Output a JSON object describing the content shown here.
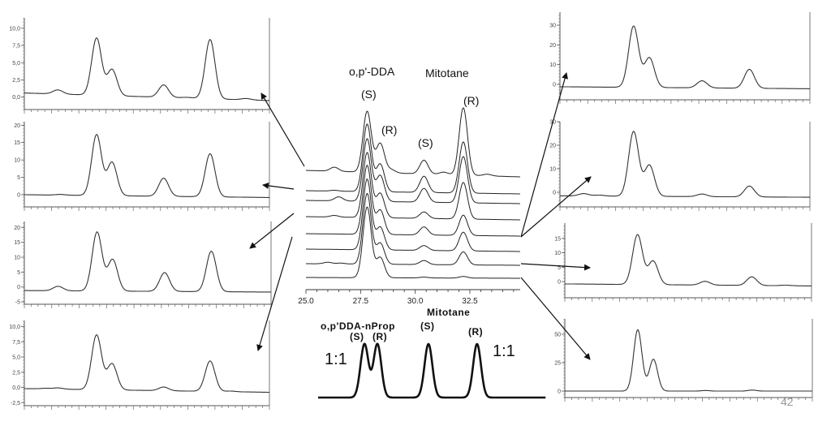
{
  "chart_data": [
    {
      "type": "line",
      "id": "L1",
      "title": "",
      "xlabel": "",
      "ylabel": "",
      "xlim": [
        25.0,
        34.5
      ],
      "ylim": [
        -1.8,
        10.8
      ],
      "yticks": [
        {
          "v": 10,
          "label": "10,0"
        },
        {
          "v": 7.5,
          "label": "7,5"
        },
        {
          "v": 5,
          "label": "5,0"
        },
        {
          "v": 2.5,
          "label": "2,5"
        },
        {
          "v": 0,
          "label": "0,0"
        }
      ],
      "baseline": [
        0.6,
        -0.5
      ],
      "peaks": [
        {
          "t": 26.3,
          "h": 0.6
        },
        {
          "t": 27.8,
          "h": 8.3
        },
        {
          "t": 28.4,
          "h": 3.8
        },
        {
          "t": 30.4,
          "h": 1.8
        },
        {
          "t": 31.3,
          "h": 0.1
        },
        {
          "t": 32.2,
          "h": 8.6
        },
        {
          "t": 33.6,
          "h": 0.2
        }
      ]
    },
    {
      "type": "line",
      "id": "L2",
      "xlim": [
        25.0,
        34.5
      ],
      "ylim": [
        -3.5,
        21
      ],
      "yticks": [
        {
          "v": 20,
          "label": "20"
        },
        {
          "v": 15,
          "label": "15"
        },
        {
          "v": 10,
          "label": "10"
        },
        {
          "v": 5,
          "label": "5"
        },
        {
          "v": 0,
          "label": "0"
        }
      ],
      "baseline": [
        0,
        -0.8
      ],
      "peaks": [
        {
          "t": 26.4,
          "h": 0.2
        },
        {
          "t": 27.8,
          "h": 17.5
        },
        {
          "t": 28.4,
          "h": 9.6
        },
        {
          "t": 30.4,
          "h": 5.2
        },
        {
          "t": 32.2,
          "h": 12.4
        }
      ]
    },
    {
      "type": "line",
      "id": "L3",
      "xlim": [
        25.0,
        34.5
      ],
      "ylim": [
        -5.8,
        22
      ],
      "yticks": [
        {
          "v": 20,
          "label": "20"
        },
        {
          "v": 15,
          "label": "15"
        },
        {
          "v": 10,
          "label": "10"
        },
        {
          "v": 5,
          "label": "5"
        },
        {
          "v": 0,
          "label": "0"
        },
        {
          "v": -5,
          "label": "-5"
        }
      ],
      "baseline": [
        -1.2,
        -1.7
      ],
      "peaks": [
        {
          "t": 26.3,
          "h": 1.5
        },
        {
          "t": 27.8,
          "h": 19.8
        },
        {
          "t": 28.4,
          "h": 10.6
        },
        {
          "t": 30.4,
          "h": 6.3
        },
        {
          "t": 32.2,
          "h": 13.6
        }
      ]
    },
    {
      "type": "line",
      "id": "L4",
      "xlim": [
        25.0,
        34.5
      ],
      "ylim": [
        -3.0,
        11
      ],
      "yticks": [
        {
          "v": 10,
          "label": "10,0"
        },
        {
          "v": 7.5,
          "label": "7,5"
        },
        {
          "v": 5,
          "label": "5,0"
        },
        {
          "v": 2.5,
          "label": "2,5"
        },
        {
          "v": 0,
          "label": "0,0"
        },
        {
          "v": -2.5,
          "label": "-2,5"
        }
      ],
      "baseline": [
        -0.2,
        -0.8
      ],
      "peaks": [
        {
          "t": 25.8,
          "h": 0.1
        },
        {
          "t": 26.3,
          "h": 0.2
        },
        {
          "t": 27.8,
          "h": 9.0
        },
        {
          "t": 28.4,
          "h": 4.3
        },
        {
          "t": 30.4,
          "h": 0.6
        },
        {
          "t": 32.2,
          "h": 5.0
        },
        {
          "t": 33.0,
          "h": 0.1
        }
      ]
    },
    {
      "type": "line",
      "id": "R1",
      "xlim": [
        25.0,
        34.5
      ],
      "ylim": [
        -7.8,
        36.6
      ],
      "yticks": [
        {
          "v": 30,
          "label": "30"
        },
        {
          "v": 20,
          "label": "20"
        },
        {
          "v": 10,
          "label": "10"
        },
        {
          "v": 0,
          "label": "0"
        }
      ],
      "baseline": [
        -1.2,
        -2.2
      ],
      "peaks": [
        {
          "t": 27.8,
          "h": 31
        },
        {
          "t": 28.4,
          "h": 15
        },
        {
          "t": 30.4,
          "h": 3.6
        },
        {
          "t": 32.2,
          "h": 9.6
        }
      ]
    },
    {
      "type": "line",
      "id": "R2",
      "xlim": [
        25.0,
        34.5
      ],
      "ylim": [
        -6.2,
        30
      ],
      "yticks": [
        {
          "v": 30,
          "label": "30"
        },
        {
          "v": 20,
          "label": "20"
        },
        {
          "v": 10,
          "label": "10"
        },
        {
          "v": 0,
          "label": "0"
        }
      ],
      "baseline": [
        -1.5,
        -2.1
      ],
      "peaks": [
        {
          "t": 25.9,
          "h": 1.0
        },
        {
          "t": 26.5,
          "h": 0.4
        },
        {
          "t": 27.8,
          "h": 27.5
        },
        {
          "t": 28.4,
          "h": 13.2
        },
        {
          "t": 30.4,
          "h": 1.1
        },
        {
          "t": 32.2,
          "h": 4.6
        }
      ]
    },
    {
      "type": "line",
      "id": "R3",
      "xlim": [
        25.0,
        34.5
      ],
      "ylim": [
        -5.6,
        20.3
      ],
      "yticks": [
        {
          "v": 15,
          "label": "15"
        },
        {
          "v": 10,
          "label": "10"
        },
        {
          "v": 5,
          "label": "5"
        },
        {
          "v": 0,
          "label": "0"
        }
      ],
      "baseline": [
        -0.8,
        -1.5
      ],
      "peaks": [
        {
          "t": 27.8,
          "h": 17.3
        },
        {
          "t": 28.4,
          "h": 8.2
        },
        {
          "t": 30.4,
          "h": 1.3
        },
        {
          "t": 32.2,
          "h": 3.0
        },
        {
          "t": 33.5,
          "h": 0.2
        }
      ]
    },
    {
      "type": "line",
      "id": "R4",
      "xlim": [
        25.0,
        34.5
      ],
      "ylim": [
        -5.7,
        63.6
      ],
      "yticks": [
        {
          "v": 50,
          "label": "50"
        },
        {
          "v": 25,
          "label": "25"
        },
        {
          "v": 0,
          "label": "0"
        }
      ],
      "baseline": [
        0,
        0
      ],
      "peaks": [
        {
          "t": 27.8,
          "h": 54
        },
        {
          "t": 28.4,
          "h": 28
        },
        {
          "t": 30.4,
          "h": 0.5
        },
        {
          "t": 32.2,
          "h": 0.9
        }
      ]
    },
    {
      "type": "line",
      "id": "stacked",
      "title": "",
      "xlabel": "",
      "ylabel": "",
      "xlim": [
        25.0,
        34.8
      ],
      "xticks": [
        {
          "v": 25.0,
          "label": "25.0"
        },
        {
          "v": 27.5,
          "label": "27.5"
        },
        {
          "v": 30.0,
          "label": "30.0"
        },
        {
          "v": 32.5,
          "label": "32.5"
        }
      ],
      "annotations": {
        "dda": "o,p'-DDA",
        "mitotane": "Mitotane",
        "dda_s": "(S)",
        "dda_r": "(R)",
        "mit_s": "(S)",
        "mit_r": "(R)"
      },
      "traces": [
        {
          "offset": 147,
          "drift": -8,
          "peaks": [
            {
              "t": 26.3,
              "h": 5
            },
            {
              "t": 27.8,
              "h": 75
            },
            {
              "t": 28.4,
              "h": 36
            },
            {
              "t": 28.9,
              "h": 4
            },
            {
              "t": 30.4,
              "h": 17
            },
            {
              "t": 31.3,
              "h": 3
            },
            {
              "t": 32.2,
              "h": 83
            },
            {
              "t": 33.3,
              "h": 2
            }
          ]
        },
        {
          "offset": 122,
          "drift": -4,
          "peaks": [
            {
              "t": 26.3,
              "h": 1
            },
            {
              "t": 27.8,
              "h": 83
            },
            {
              "t": 28.4,
              "h": 34
            },
            {
              "t": 30.4,
              "h": 20
            },
            {
              "t": 32.2,
              "h": 63
            }
          ]
        },
        {
          "offset": 110,
          "drift": -4,
          "peaks": [
            {
              "t": 26.5,
              "h": 5
            },
            {
              "t": 27.8,
              "h": 77
            },
            {
              "t": 28.4,
              "h": 32
            },
            {
              "t": 30.4,
              "h": 17
            },
            {
              "t": 32.2,
              "h": 57
            }
          ]
        },
        {
          "offset": 90,
          "drift": -4,
          "peaks": [
            {
              "t": 26.3,
              "h": 2
            },
            {
              "t": 27.8,
              "h": 80
            },
            {
              "t": 28.4,
              "h": 30
            },
            {
              "t": 30.4,
              "h": 8
            },
            {
              "t": 32.2,
              "h": 45
            }
          ]
        },
        {
          "offset": 69,
          "drift": -3,
          "peaks": [
            {
              "t": 27.8,
              "h": 85
            },
            {
              "t": 28.4,
              "h": 30
            },
            {
              "t": 30.4,
              "h": 10
            },
            {
              "t": 32.2,
              "h": 25
            }
          ]
        },
        {
          "offset": 50,
          "drift": -3,
          "peaks": [
            {
              "t": 27.8,
              "h": 87
            },
            {
              "t": 28.4,
              "h": 28
            },
            {
              "t": 30.4,
              "h": 6
            },
            {
              "t": 32.2,
              "h": 23
            }
          ]
        },
        {
          "offset": 32,
          "drift": -2,
          "peaks": [
            {
              "t": 26.0,
              "h": 2
            },
            {
              "t": 26.6,
              "h": 1
            },
            {
              "t": 27.8,
              "h": 87
            },
            {
              "t": 28.4,
              "h": 26
            },
            {
              "t": 30.4,
              "h": 5
            },
            {
              "t": 32.2,
              "h": 16
            }
          ]
        },
        {
          "offset": 15,
          "drift": -1,
          "peaks": [
            {
              "t": 27.8,
              "h": 87
            },
            {
              "t": 28.4,
              "h": 25
            },
            {
              "t": 30.4,
              "h": 1
            },
            {
              "t": 32.2,
              "h": 2
            }
          ]
        }
      ]
    },
    {
      "type": "line",
      "id": "schematic",
      "annotations": {
        "mitotane": "Mitotane",
        "dda_nprop": "o,p'DDA-nProp",
        "dda_s": "(S)",
        "dda_r": "(R)",
        "mit_s": "(S)",
        "mit_r": "(R)",
        "ratio_left": "1:1",
        "ratio_right": "1:1"
      },
      "xlim": [
        25.8,
        33.9
      ],
      "peaks": [
        {
          "t": 27.45,
          "h": 1
        },
        {
          "t": 27.91,
          "h": 1
        },
        {
          "t": 29.73,
          "h": 1
        },
        {
          "t": 31.46,
          "h": 1
        }
      ]
    }
  ],
  "page_number": "42"
}
